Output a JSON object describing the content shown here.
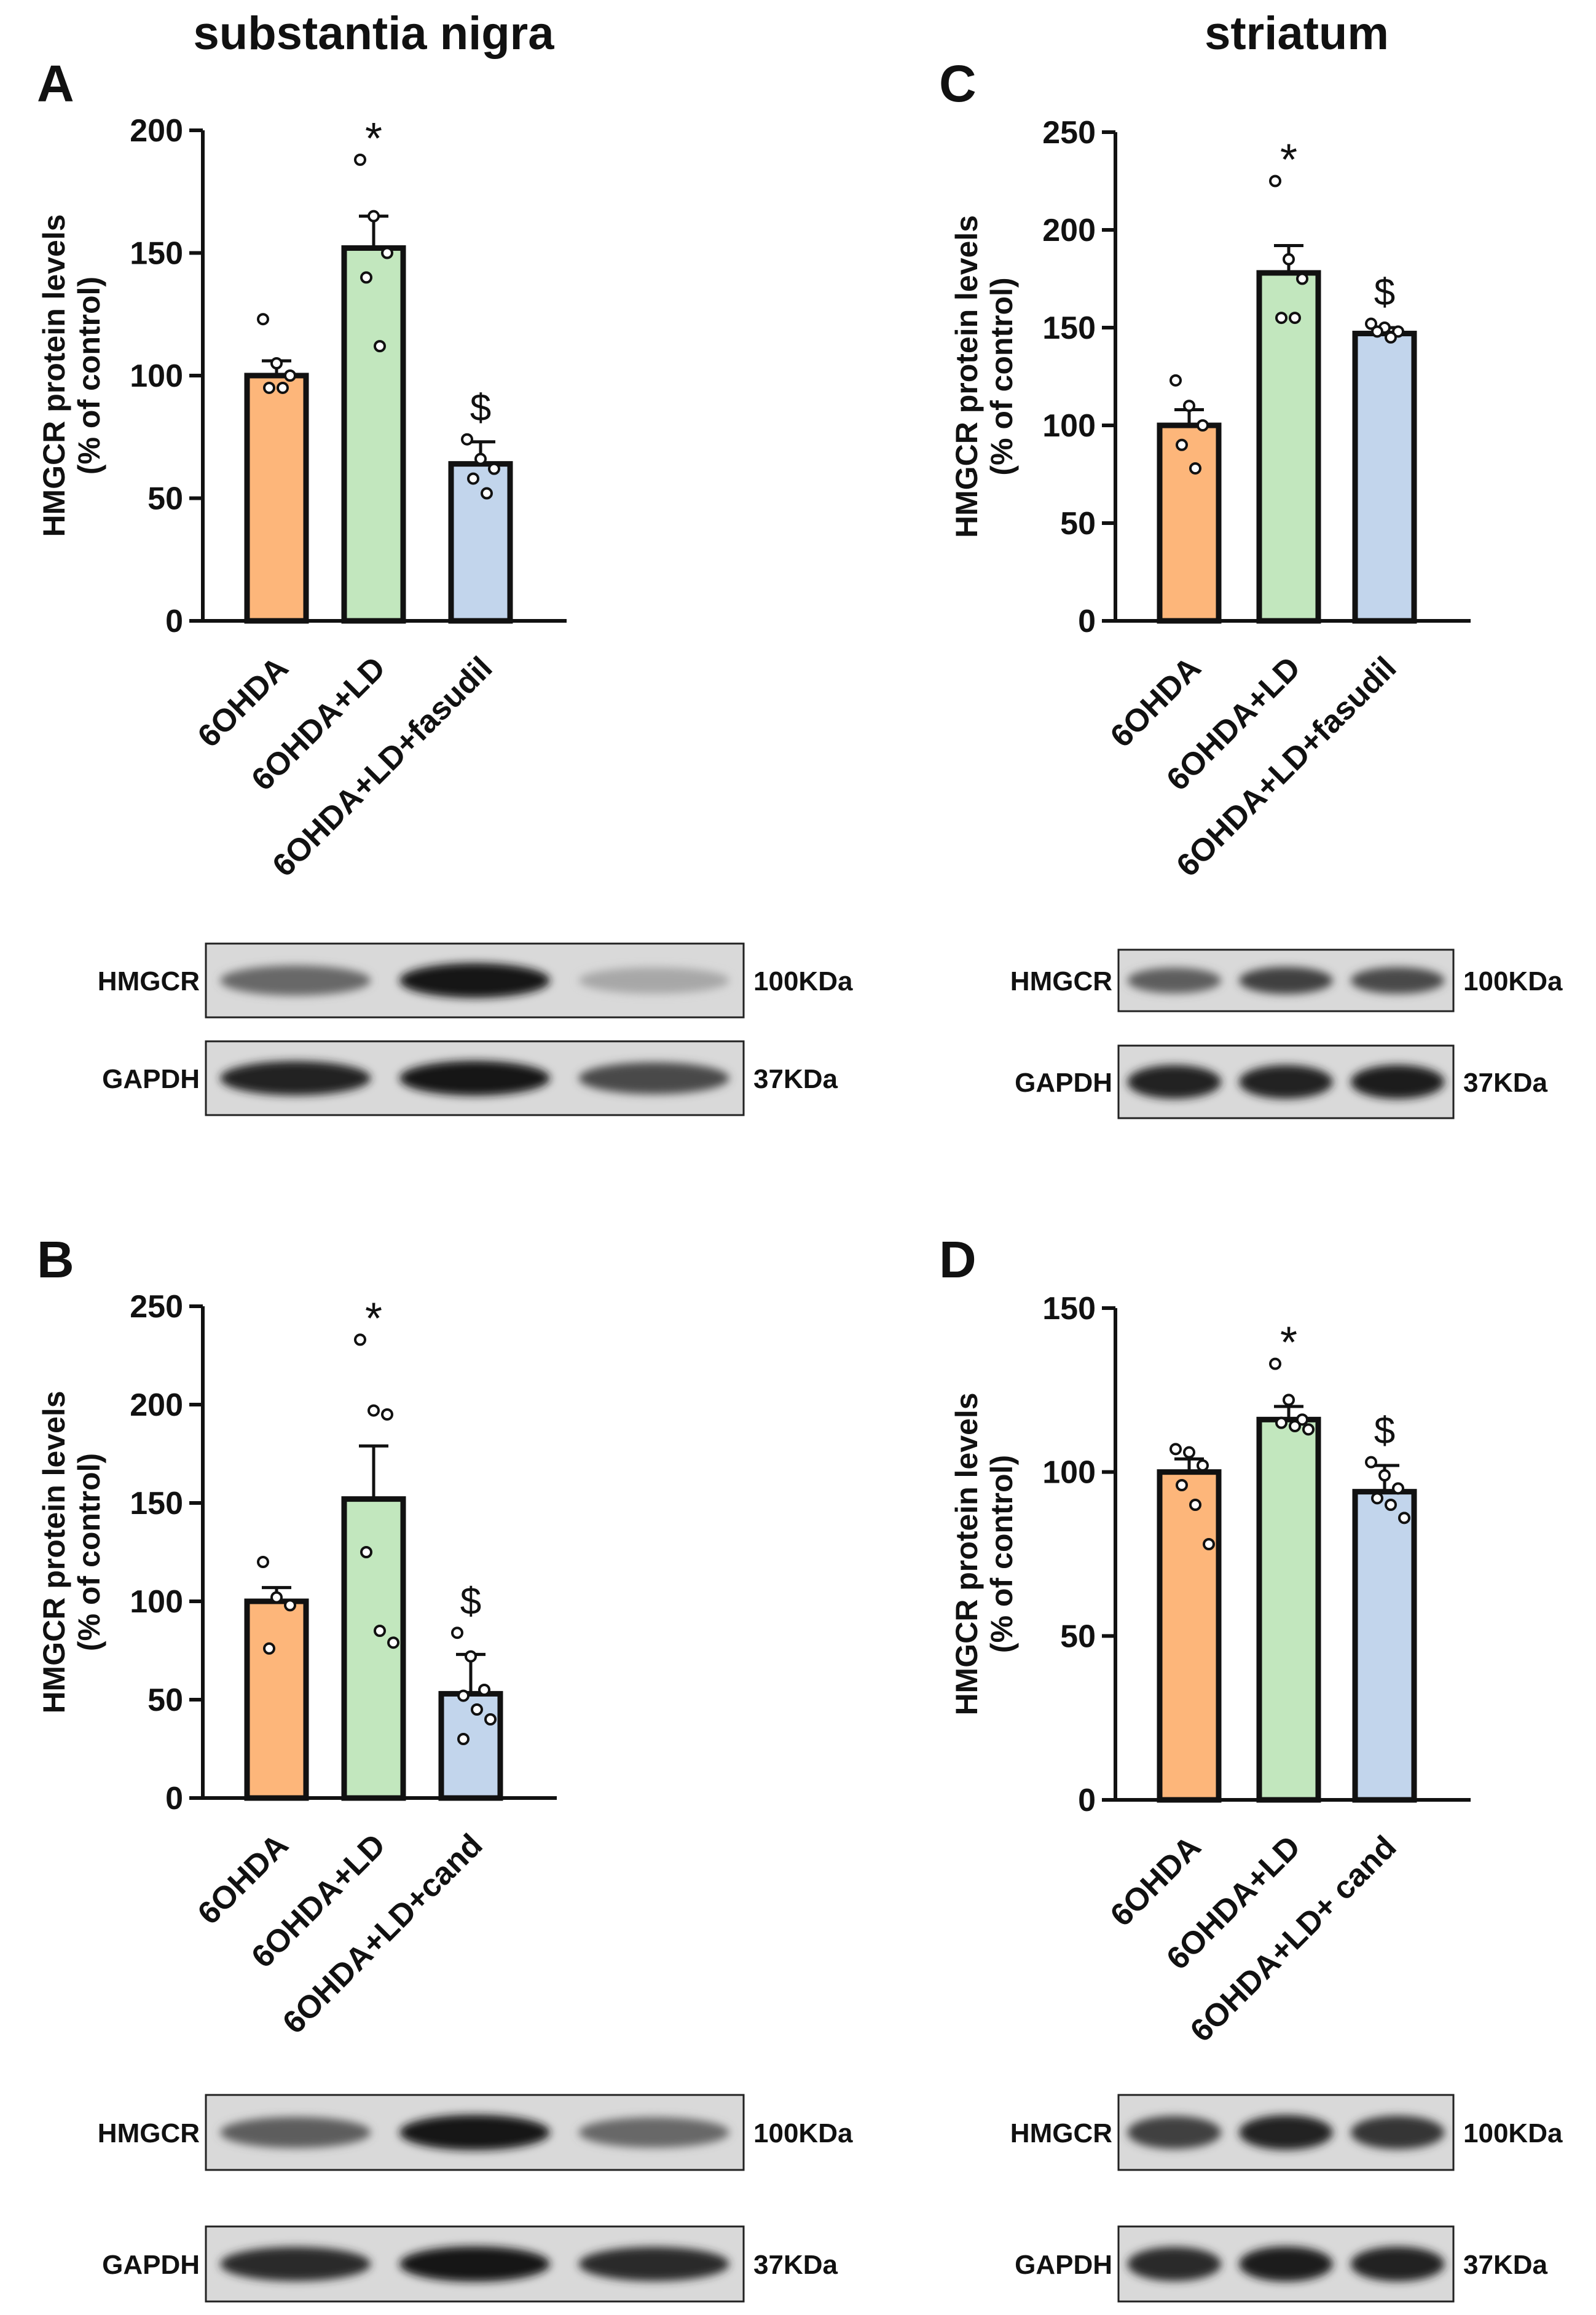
{
  "region_titles": {
    "left": "substantia nigra",
    "right": "striatum"
  },
  "colors": {
    "6OHDA": "#FDB67A",
    "6OHDA+LD": "#C2E7BE",
    "treatment": "#C2D5EC",
    "axis": "#111111"
  },
  "chart_data": [
    {
      "panel": "A",
      "type": "bar",
      "ylabel": [
        "HMGCR protein levels",
        "(% of control)"
      ],
      "ylim": [
        0,
        200
      ],
      "yticks": [
        0,
        50,
        100,
        150,
        200
      ],
      "categories": [
        "6OHDA",
        "6OHDA+LD",
        "6OHDA+LD+fasudil"
      ],
      "values": [
        100,
        152,
        64
      ],
      "sem": [
        6,
        13,
        9
      ],
      "points": [
        [
          123,
          105,
          100,
          95,
          95
        ],
        [
          188,
          165,
          150,
          140,
          112
        ],
        [
          74,
          66,
          62,
          58,
          52
        ]
      ],
      "annotations": [
        "",
        "*",
        "$"
      ],
      "blot": {
        "rows": [
          {
            "protein": "HMGCR",
            "size": "100KDa",
            "intensity": [
              0.55,
              0.95,
              0.22
            ]
          },
          {
            "protein": "GAPDH",
            "size": "37KDa",
            "intensity": [
              0.9,
              0.95,
              0.7
            ]
          }
        ]
      }
    },
    {
      "panel": "B",
      "type": "bar",
      "ylabel": [
        "HMGCR protein levels",
        "(% of control)"
      ],
      "ylim": [
        0,
        250
      ],
      "yticks": [
        0,
        50,
        100,
        150,
        200,
        250
      ],
      "categories": [
        "6OHDA",
        "6OHDA+LD",
        "6OHDA+LD+cand"
      ],
      "values": [
        100,
        152,
        53
      ],
      "sem": [
        7,
        27,
        20
      ],
      "points": [
        [
          120,
          102,
          98,
          76
        ],
        [
          233,
          197,
          195,
          125,
          85,
          79
        ],
        [
          84,
          72,
          55,
          52,
          45,
          40,
          30
        ]
      ],
      "annotations": [
        "",
        "*",
        "$"
      ],
      "blot": {
        "rows": [
          {
            "protein": "HMGCR",
            "size": "100KDa",
            "intensity": [
              0.6,
              0.95,
              0.55
            ]
          },
          {
            "protein": "GAPDH",
            "size": "37KDa",
            "intensity": [
              0.85,
              0.95,
              0.85
            ]
          }
        ]
      }
    },
    {
      "panel": "C",
      "type": "bar",
      "ylabel": [
        "HMGCR protein levels",
        "(% of control)"
      ],
      "ylim": [
        0,
        250
      ],
      "yticks": [
        0,
        50,
        100,
        150,
        200,
        250
      ],
      "categories": [
        "6OHDA",
        "6OHDA+LD",
        "6OHDA+LD+fasudil"
      ],
      "values": [
        100,
        178,
        147
      ],
      "sem": [
        8,
        14,
        3
      ],
      "points": [
        [
          123,
          110,
          100,
          90,
          78
        ],
        [
          225,
          185,
          175,
          155,
          155
        ],
        [
          152,
          150,
          148,
          148,
          145
        ]
      ],
      "annotations": [
        "",
        "*",
        "$"
      ],
      "blot": {
        "rows": [
          {
            "protein": "HMGCR",
            "size": "100KDa",
            "intensity": [
              0.6,
              0.75,
              0.7
            ]
          },
          {
            "protein": "GAPDH",
            "size": "37KDa",
            "intensity": [
              0.9,
              0.9,
              0.92
            ]
          }
        ]
      }
    },
    {
      "panel": "D",
      "type": "bar",
      "ylabel": [
        "HMGCR protein levels",
        "(% of control)"
      ],
      "ylim": [
        0,
        150
      ],
      "yticks": [
        0,
        50,
        100,
        150
      ],
      "categories": [
        "6OHDA",
        "6OHDA+LD",
        "6OHDA+LD+ cand"
      ],
      "values": [
        100,
        116,
        94
      ],
      "sem": [
        4,
        4,
        8
      ],
      "points": [
        [
          107,
          106,
          102,
          96,
          90,
          78
        ],
        [
          133,
          122,
          116,
          115,
          114,
          113
        ],
        [
          103,
          99,
          95,
          92,
          90,
          86
        ]
      ],
      "annotations": [
        "",
        "*",
        "$"
      ],
      "blot": {
        "rows": [
          {
            "protein": "HMGCR",
            "size": "100KDa",
            "intensity": [
              0.75,
              0.9,
              0.8
            ]
          },
          {
            "protein": "GAPDH",
            "size": "37KDa",
            "intensity": [
              0.85,
              0.92,
              0.9
            ]
          }
        ]
      }
    }
  ]
}
